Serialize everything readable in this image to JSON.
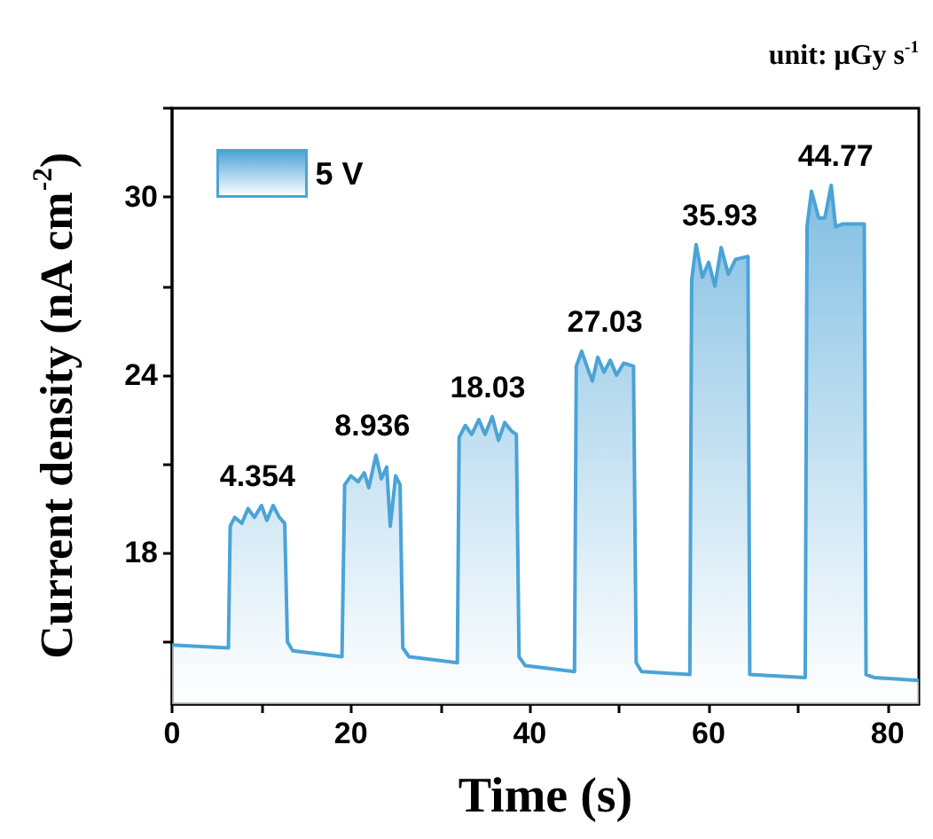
{
  "chart_data": {
    "type": "area",
    "xlabel": "Time (s)",
    "ylabel": "Current density (nA cm$^{-2}$)",
    "xlim": [
      0,
      83.5
    ],
    "ylim": [
      12.9,
      33.0
    ],
    "xticks": [
      0,
      {
        "value": 10,
        "label": null
      },
      20,
      {
        "value": 30,
        "label": null
      },
      40,
      {
        "value": 50,
        "label": null
      },
      60,
      {
        "value": 70,
        "label": null
      },
      80
    ],
    "yticks": [
      {
        "value": 15,
        "label": null
      },
      18,
      {
        "value": 21,
        "label": null
      },
      24,
      {
        "value": 27,
        "label": null
      },
      30,
      {
        "value": 33,
        "label": null
      }
    ],
    "series": [
      {
        "name": "5 V",
        "color": "#4ba3d6",
        "x": [
          0,
          6.3,
          6.5,
          7,
          7.8,
          8.5,
          9.2,
          10,
          10.6,
          11.3,
          12,
          12.6,
          12.9,
          13.5,
          19.0,
          19.3,
          20,
          20.8,
          21.5,
          22,
          22.8,
          23.4,
          24,
          24.4,
          25,
          25.5,
          25.8,
          26.5,
          31.9,
          32.1,
          32.8,
          33.5,
          34.3,
          35,
          35.8,
          36.5,
          37.2,
          38,
          38.5,
          38.8,
          39.5,
          45.0,
          45.2,
          45.8,
          46.5,
          47,
          47.6,
          48.3,
          49,
          49.7,
          50.5,
          51.6,
          51.9,
          52.5,
          57.9,
          58.1,
          58.6,
          59.3,
          60,
          60.7,
          61.4,
          62.2,
          63,
          64.4,
          64.6,
          70.8,
          71.0,
          71.5,
          72.3,
          73,
          73.7,
          74.2,
          75,
          77.4,
          77.6,
          78.5,
          83.5
        ],
        "values": [
          14.9,
          14.8,
          18.9,
          19.2,
          19.0,
          19.5,
          19.2,
          19.6,
          19.1,
          19.6,
          19.2,
          19.0,
          15.0,
          14.7,
          14.5,
          20.3,
          20.6,
          20.4,
          20.7,
          20.2,
          21.3,
          20.5,
          20.9,
          18.9,
          20.6,
          20.3,
          14.8,
          14.5,
          14.3,
          21.9,
          22.3,
          22.0,
          22.5,
          22.0,
          22.6,
          21.8,
          22.4,
          22.1,
          22.0,
          14.5,
          14.2,
          14.0,
          24.3,
          24.8,
          24.2,
          23.8,
          24.6,
          24.1,
          24.5,
          24.0,
          24.4,
          24.3,
          14.3,
          14.0,
          13.9,
          27.2,
          28.4,
          27.3,
          27.8,
          27.0,
          28.3,
          27.4,
          27.9,
          28.0,
          13.9,
          13.8,
          29.0,
          30.2,
          29.3,
          29.3,
          30.4,
          29.0,
          29.1,
          29.1,
          13.9,
          13.8,
          13.7
        ]
      }
    ],
    "annotations": [
      "unit: μGy s$^{-1}$",
      "4.354",
      "8.936",
      "18.03",
      "27.03",
      "35.93",
      "44.77"
    ],
    "legend": "top left",
    "grid": false,
    "marker": "none",
    "line_style": "solid"
  }
}
